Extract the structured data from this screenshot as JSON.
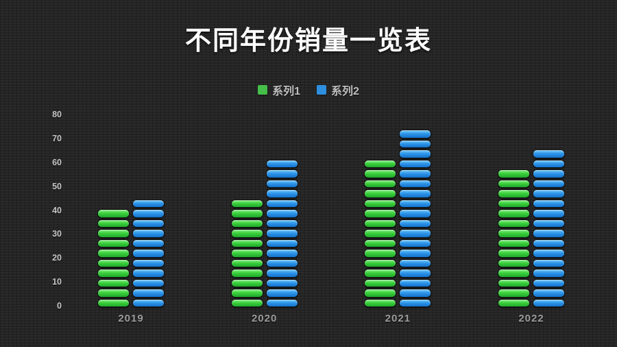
{
  "slide": {
    "title": "不同年份销量一览表",
    "background_color": "#262626"
  },
  "legend": {
    "position": "top-center",
    "items": [
      {
        "label": "系列1",
        "swatch_color": "#45BE4A"
      },
      {
        "label": "系列2",
        "swatch_color": "#2E8FDF"
      }
    ]
  },
  "chart_data": {
    "type": "bar",
    "title": "不同年份销量一览表",
    "categories": [
      "2019",
      "2020",
      "2021",
      "2022"
    ],
    "series": [
      {
        "name": "系列1",
        "values": [
          40,
          44,
          60,
          56
        ],
        "color": "#3CD13C",
        "color_light": "#8DEF8D",
        "color_dark": "#1FA62C"
      },
      {
        "name": "系列2",
        "values": [
          44,
          60,
          72,
          64
        ],
        "color": "#2E96EA",
        "color_light": "#79CBF8",
        "color_dark": "#1470C8"
      }
    ],
    "xlabel": "",
    "ylabel": "",
    "ylim": [
      0,
      80
    ],
    "yticks": [
      0,
      10,
      20,
      30,
      40,
      50,
      60,
      70,
      80
    ],
    "grid": false,
    "legend_position": "top-center",
    "bar_style": "segmented-rounded",
    "segment_unit": 4
  },
  "axis": {
    "ytick_text_color": "#C6C6C6",
    "xtick_text_color": "#9C9C9C"
  }
}
